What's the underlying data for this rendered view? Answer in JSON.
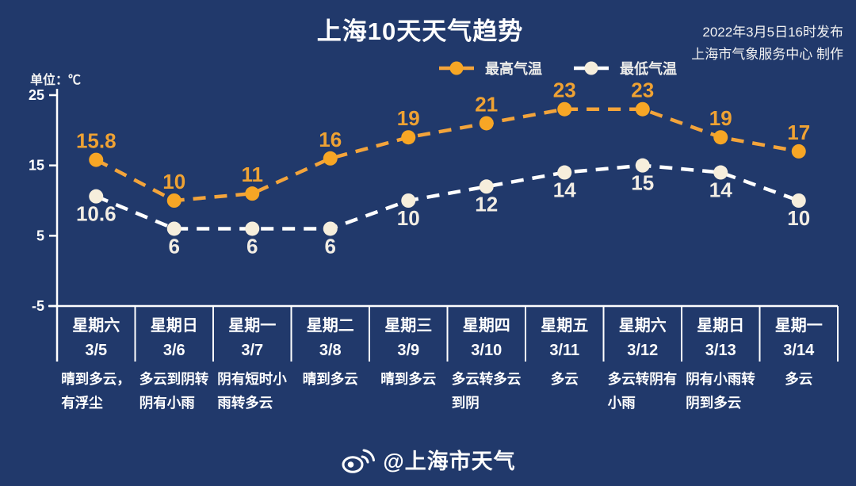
{
  "header": {
    "title": "上海10天天气趋势",
    "issued_line1": "2022年3月5日16时发布",
    "issued_line2": "上海市气象服务中心 制作",
    "unit_label": "单位：℃"
  },
  "colors": {
    "background": "#21396B",
    "axis": "#FFFFFF",
    "text": "#FFFFFF",
    "high": "#F3A43B",
    "high_dot": "#F7A625",
    "high_label": "#EFA233",
    "low_line": "#FFFFFF",
    "low_dot": "#F6EEDC",
    "low_label": "#F2EDE4"
  },
  "footer": {
    "weibo_handle": "@上海市天气"
  },
  "chart_data": {
    "type": "line",
    "title": "上海10天天气趋势",
    "unit": "℃",
    "ylim": [
      -5,
      25
    ],
    "y_ticks": [
      25,
      15,
      5,
      -5
    ],
    "grid": false,
    "legend_position": "top",
    "categories": [
      {
        "day": "星期六",
        "date": "3/5",
        "weather": "晴到多云，有浮尘"
      },
      {
        "day": "星期日",
        "date": "3/6",
        "weather": "多云到阴转阴有小雨"
      },
      {
        "day": "星期一",
        "date": "3/7",
        "weather": "阴有短时小雨转多云"
      },
      {
        "day": "星期二",
        "date": "3/8",
        "weather": "晴到多云"
      },
      {
        "day": "星期三",
        "date": "3/9",
        "weather": "晴到多云"
      },
      {
        "day": "星期四",
        "date": "3/10",
        "weather": "多云转多云到阴"
      },
      {
        "day": "星期五",
        "date": "3/11",
        "weather": "多云"
      },
      {
        "day": "星期六",
        "date": "3/12",
        "weather": "多云转阴有小雨"
      },
      {
        "day": "星期日",
        "date": "3/13",
        "weather": "阴有小雨转阴到多云"
      },
      {
        "day": "星期一",
        "date": "3/14",
        "weather": "多云"
      }
    ],
    "series": [
      {
        "name": "最高气温",
        "values": [
          15.8,
          10,
          11,
          16,
          19,
          21,
          23,
          23,
          19,
          17
        ]
      },
      {
        "name": "最低气温",
        "values": [
          10.6,
          6,
          6,
          6,
          10,
          12,
          14,
          15,
          14,
          10
        ]
      }
    ]
  }
}
